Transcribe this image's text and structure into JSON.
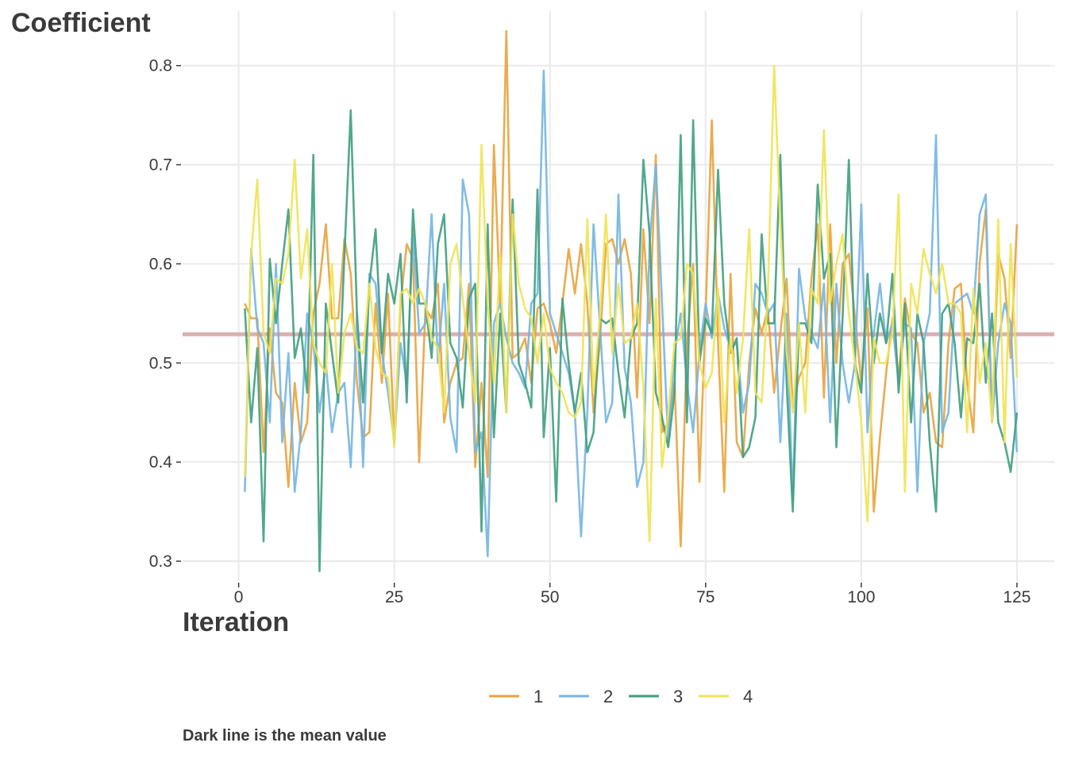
{
  "chart_data": {
    "type": "line",
    "title": "",
    "ylabel": "Coefficient",
    "xlabel": "Iteration",
    "caption": "Dark line is the mean value",
    "xlim": [
      -9,
      131
    ],
    "ylim": [
      0.28,
      0.855
    ],
    "xticks": [
      0,
      25,
      50,
      75,
      100,
      125
    ],
    "yticks": [
      0.3,
      0.4,
      0.5,
      0.6,
      0.7,
      0.8
    ],
    "grid": true,
    "legend_position": "bottom",
    "mean_line": {
      "value": 0.529,
      "color": "#d9b0b0"
    },
    "x": [
      1,
      2,
      3,
      4,
      5,
      6,
      7,
      8,
      9,
      10,
      11,
      12,
      13,
      14,
      15,
      16,
      17,
      18,
      19,
      20,
      21,
      22,
      23,
      24,
      25,
      26,
      27,
      28,
      29,
      30,
      31,
      32,
      33,
      34,
      35,
      36,
      37,
      38,
      39,
      40,
      41,
      42,
      43,
      44,
      45,
      46,
      47,
      48,
      49,
      50,
      51,
      52,
      53,
      54,
      55,
      56,
      57,
      58,
      59,
      60,
      61,
      62,
      63,
      64,
      65,
      66,
      67,
      68,
      69,
      70,
      71,
      72,
      73,
      74,
      75,
      76,
      77,
      78,
      79,
      80,
      81,
      82,
      83,
      84,
      85,
      86,
      87,
      88,
      89,
      90,
      91,
      92,
      93,
      94,
      95,
      96,
      97,
      98,
      99,
      100,
      101,
      102,
      103,
      104,
      105,
      106,
      107,
      108,
      109,
      110,
      111,
      112,
      113,
      114,
      115,
      116,
      117,
      118,
      119,
      120,
      121,
      122,
      123,
      124,
      125
    ],
    "series": [
      {
        "name": "1",
        "color": "#e8a33d",
        "values": [
          0.56,
          0.545,
          0.545,
          0.41,
          0.535,
          0.47,
          0.46,
          0.375,
          0.48,
          0.42,
          0.44,
          0.55,
          0.58,
          0.64,
          0.545,
          0.545,
          0.625,
          0.59,
          0.48,
          0.425,
          0.43,
          0.56,
          0.48,
          0.57,
          0.42,
          0.56,
          0.62,
          0.605,
          0.4,
          0.555,
          0.545,
          0.58,
          0.44,
          0.48,
          0.5,
          0.505,
          0.58,
          0.395,
          0.48,
          0.385,
          0.72,
          0.56,
          0.835,
          0.505,
          0.51,
          0.525,
          0.48,
          0.555,
          0.56,
          0.54,
          0.51,
          0.56,
          0.615,
          0.57,
          0.62,
          0.56,
          0.45,
          0.52,
          0.62,
          0.625,
          0.6,
          0.625,
          0.59,
          0.465,
          0.635,
          0.54,
          0.71,
          0.43,
          0.44,
          0.48,
          0.315,
          0.52,
          0.6,
          0.38,
          0.55,
          0.745,
          0.52,
          0.37,
          0.59,
          0.42,
          0.405,
          0.5,
          0.555,
          0.53,
          0.555,
          0.47,
          0.53,
          0.585,
          0.455,
          0.485,
          0.5,
          0.585,
          0.64,
          0.465,
          0.64,
          0.5,
          0.6,
          0.61,
          0.545,
          0.48,
          0.555,
          0.35,
          0.425,
          0.49,
          0.545,
          0.485,
          0.565,
          0.53,
          0.52,
          0.45,
          0.47,
          0.42,
          0.415,
          0.52,
          0.575,
          0.58,
          0.48,
          0.43,
          0.6,
          0.655,
          0.44,
          0.61,
          0.585,
          0.505,
          0.64
        ]
      },
      {
        "name": "2",
        "color": "#74b5e3",
        "values": [
          0.37,
          0.615,
          0.535,
          0.52,
          0.44,
          0.6,
          0.42,
          0.51,
          0.37,
          0.43,
          0.55,
          0.52,
          0.45,
          0.5,
          0.43,
          0.47,
          0.48,
          0.395,
          0.55,
          0.395,
          0.59,
          0.58,
          0.51,
          0.47,
          0.42,
          0.52,
          0.48,
          0.63,
          0.53,
          0.54,
          0.65,
          0.5,
          0.58,
          0.445,
          0.41,
          0.685,
          0.65,
          0.41,
          0.43,
          0.305,
          0.54,
          0.56,
          0.525,
          0.5,
          0.49,
          0.475,
          0.56,
          0.57,
          0.795,
          0.55,
          0.53,
          0.51,
          0.49,
          0.45,
          0.325,
          0.45,
          0.64,
          0.54,
          0.44,
          0.46,
          0.67,
          0.495,
          0.46,
          0.375,
          0.4,
          0.62,
          0.7,
          0.56,
          0.42,
          0.51,
          0.55,
          0.48,
          0.43,
          0.51,
          0.56,
          0.525,
          0.57,
          0.535,
          0.515,
          0.52,
          0.45,
          0.48,
          0.58,
          0.57,
          0.55,
          0.56,
          0.42,
          0.55,
          0.36,
          0.595,
          0.545,
          0.53,
          0.515,
          0.58,
          0.44,
          0.58,
          0.5,
          0.46,
          0.5,
          0.66,
          0.43,
          0.53,
          0.58,
          0.52,
          0.54,
          0.48,
          0.54,
          0.535,
          0.37,
          0.52,
          0.55,
          0.73,
          0.43,
          0.45,
          0.56,
          0.565,
          0.57,
          0.55,
          0.65,
          0.67,
          0.44,
          0.52,
          0.56,
          0.54,
          0.41
        ]
      },
      {
        "name": "3",
        "color": "#3f9e80",
        "values": [
          0.555,
          0.44,
          0.515,
          0.32,
          0.605,
          0.54,
          0.6,
          0.655,
          0.505,
          0.535,
          0.47,
          0.71,
          0.29,
          0.56,
          0.51,
          0.46,
          0.61,
          0.755,
          0.55,
          0.46,
          0.58,
          0.635,
          0.51,
          0.59,
          0.56,
          0.61,
          0.46,
          0.655,
          0.56,
          0.56,
          0.505,
          0.62,
          0.65,
          0.52,
          0.505,
          0.455,
          0.565,
          0.58,
          0.33,
          0.64,
          0.425,
          0.55,
          0.45,
          0.665,
          0.5,
          0.48,
          0.455,
          0.675,
          0.425,
          0.515,
          0.36,
          0.565,
          0.5,
          0.45,
          0.49,
          0.41,
          0.43,
          0.545,
          0.54,
          0.545,
          0.49,
          0.445,
          0.525,
          0.54,
          0.705,
          0.63,
          0.47,
          0.445,
          0.415,
          0.47,
          0.73,
          0.44,
          0.745,
          0.5,
          0.545,
          0.53,
          0.695,
          0.56,
          0.51,
          0.525,
          0.405,
          0.415,
          0.445,
          0.63,
          0.54,
          0.54,
          0.71,
          0.48,
          0.35,
          0.54,
          0.54,
          0.52,
          0.68,
          0.585,
          0.61,
          0.415,
          0.545,
          0.705,
          0.5,
          0.47,
          0.59,
          0.5,
          0.55,
          0.52,
          0.59,
          0.47,
          0.56,
          0.44,
          0.55,
          0.52,
          0.42,
          0.35,
          0.55,
          0.56,
          0.52,
          0.445,
          0.525,
          0.52,
          0.58,
          0.48,
          0.55,
          0.44,
          0.42,
          0.39,
          0.45
        ]
      },
      {
        "name": "4",
        "color": "#efe354",
        "values": [
          0.385,
          0.61,
          0.685,
          0.53,
          0.51,
          0.585,
          0.58,
          0.61,
          0.705,
          0.585,
          0.635,
          0.52,
          0.5,
          0.49,
          0.6,
          0.47,
          0.53,
          0.55,
          0.515,
          0.51,
          0.58,
          0.515,
          0.49,
          0.485,
          0.415,
          0.57,
          0.575,
          0.56,
          0.575,
          0.56,
          0.525,
          0.515,
          0.45,
          0.6,
          0.62,
          0.565,
          0.51,
          0.46,
          0.72,
          0.56,
          0.48,
          0.61,
          0.45,
          0.65,
          0.58,
          0.555,
          0.545,
          0.5,
          0.55,
          0.495,
          0.48,
          0.47,
          0.45,
          0.445,
          0.46,
          0.645,
          0.47,
          0.545,
          0.65,
          0.51,
          0.58,
          0.52,
          0.525,
          0.56,
          0.475,
          0.32,
          0.565,
          0.395,
          0.45,
          0.52,
          0.525,
          0.6,
          0.59,
          0.5,
          0.475,
          0.49,
          0.575,
          0.44,
          0.525,
          0.47,
          0.525,
          0.635,
          0.47,
          0.46,
          0.57,
          0.8,
          0.64,
          0.51,
          0.45,
          0.54,
          0.45,
          0.575,
          0.56,
          0.735,
          0.56,
          0.6,
          0.63,
          0.55,
          0.5,
          0.44,
          0.34,
          0.525,
          0.5,
          0.5,
          0.53,
          0.67,
          0.37,
          0.58,
          0.55,
          0.615,
          0.59,
          0.57,
          0.6,
          0.56,
          0.56,
          0.55,
          0.43,
          0.575,
          0.48,
          0.52,
          0.44,
          0.645,
          0.42,
          0.62,
          0.485
        ]
      }
    ]
  }
}
